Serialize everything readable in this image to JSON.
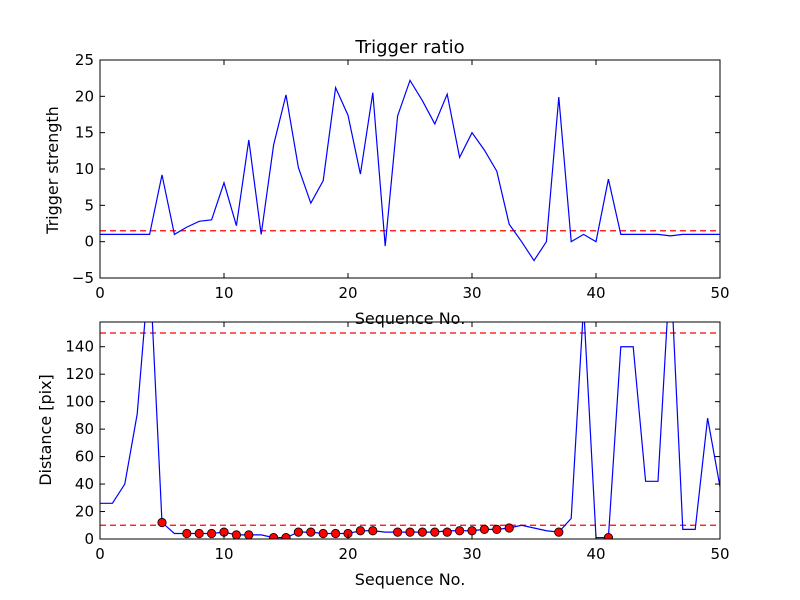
{
  "chart_data": [
    {
      "type": "line",
      "title": "Trigger ratio",
      "xlabel": "Sequence No.",
      "ylabel": "Trigger strength",
      "xlim": [
        0,
        50
      ],
      "ylim": [
        -5,
        25
      ],
      "xticks": [
        "0",
        "10",
        "20",
        "30",
        "40",
        "50"
      ],
      "yticks": [
        "−5",
        "0",
        "5",
        "10",
        "15",
        "20",
        "25"
      ],
      "xtick_values": [
        0,
        10,
        20,
        30,
        40,
        50
      ],
      "ytick_values": [
        -5,
        0,
        5,
        10,
        15,
        20,
        25
      ],
      "grid": false,
      "line_color": "#0000ff",
      "series": [
        {
          "x": [
            0,
            1,
            2,
            3,
            4,
            5,
            6,
            7,
            8,
            9,
            10,
            11,
            12,
            13,
            14,
            15,
            16,
            17,
            18,
            19,
            20,
            21,
            22,
            23,
            24,
            25,
            26,
            27,
            28,
            29,
            30,
            31,
            32,
            33,
            34,
            35,
            36,
            37,
            38,
            39,
            40,
            41,
            42,
            43,
            44,
            45,
            46,
            47,
            48,
            49,
            50
          ],
          "values": [
            1.0,
            1.0,
            1.0,
            1.0,
            1.0,
            9.2,
            1.0,
            2.0,
            2.8,
            3.0,
            8.1,
            2.2,
            14.0,
            1.0,
            13.3,
            20.2,
            10.2,
            5.3,
            8.4,
            21.2,
            17.4,
            9.3,
            20.5,
            -0.6,
            17.3,
            22.2,
            19.4,
            16.2,
            20.3,
            11.6,
            15.0,
            12.6,
            9.7,
            2.4,
            0.0,
            -2.6,
            0.0,
            19.9,
            0.0,
            1.0,
            0.0,
            8.6,
            1.0,
            1.0,
            1.0,
            1.0,
            0.8,
            1.0,
            1.0,
            1.0,
            1.0
          ]
        }
      ],
      "threshold": {
        "value": 1.5,
        "color": "#ff0000",
        "style": "dashed"
      }
    },
    {
      "type": "line",
      "title": "",
      "xlabel": "Sequence No.",
      "ylabel": "Distance [pix]",
      "xlim": [
        0,
        50
      ],
      "ylim": [
        0,
        158
      ],
      "xticks": [
        "0",
        "10",
        "20",
        "30",
        "40",
        "50"
      ],
      "yticks": [
        "0",
        "20",
        "40",
        "60",
        "80",
        "100",
        "120",
        "140"
      ],
      "xtick_values": [
        0,
        10,
        20,
        30,
        40,
        50
      ],
      "ytick_values": [
        0,
        20,
        40,
        60,
        80,
        100,
        120,
        140
      ],
      "grid": false,
      "line_color": "#0000ff",
      "marker_color": "#ff0000",
      "series": [
        {
          "x": [
            0,
            1,
            2,
            3,
            4,
            5,
            6,
            7,
            8,
            9,
            10,
            11,
            12,
            13,
            14,
            15,
            16,
            17,
            18,
            19,
            20,
            21,
            22,
            23,
            24,
            25,
            26,
            27,
            28,
            29,
            30,
            31,
            32,
            33,
            34,
            35,
            36,
            37,
            38,
            39,
            40,
            41,
            42,
            43,
            44,
            45,
            46,
            47,
            48,
            49,
            50
          ],
          "values": [
            26,
            26,
            40,
            91,
            200,
            12,
            4,
            4,
            4,
            4,
            5,
            3,
            3,
            3,
            1,
            1,
            5,
            5,
            4,
            4,
            4,
            6,
            6,
            5,
            5,
            5,
            5,
            5,
            6,
            6,
            6,
            7,
            7,
            8,
            10,
            8,
            6,
            5,
            15,
            170,
            1,
            1,
            140,
            140,
            42,
            42,
            200,
            7,
            7,
            88,
            38
          ]
        }
      ],
      "markers": {
        "x": [
          5,
          7,
          8,
          9,
          10,
          11,
          12,
          14,
          15,
          16,
          17,
          18,
          19,
          20,
          21,
          22,
          24,
          25,
          26,
          27,
          28,
          29,
          30,
          31,
          32,
          33,
          37,
          41
        ],
        "values": [
          12,
          4,
          4,
          4,
          5,
          3,
          3,
          1,
          1,
          5,
          5,
          4,
          4,
          4,
          6,
          6,
          5,
          5,
          5,
          5,
          5,
          6,
          6,
          7,
          7,
          8,
          5,
          1
        ]
      },
      "thresholds": [
        {
          "value": 150,
          "color": "#ff0000",
          "style": "dashed"
        },
        {
          "value": 10,
          "color": "#ff0000",
          "style": "dashed"
        }
      ]
    }
  ]
}
